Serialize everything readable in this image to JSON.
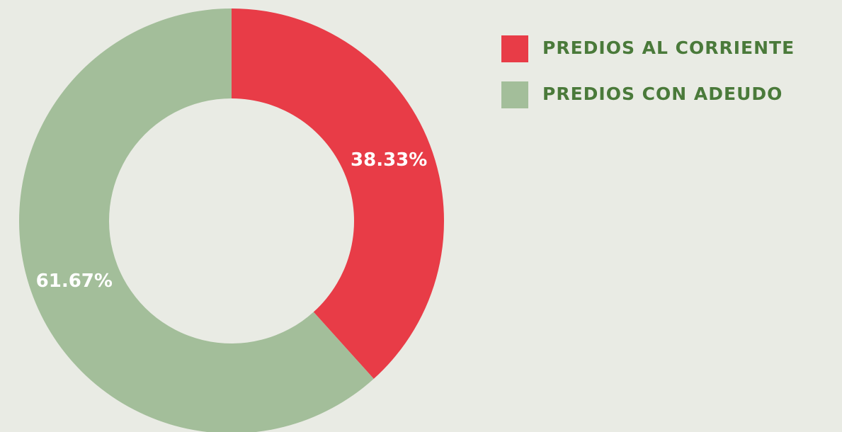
{
  "chart_data": {
    "type": "donut",
    "categories": [
      "PREDIOS AL CORRIENTE",
      "PREDIOS CON ADEUDO"
    ],
    "values": [
      38.33,
      61.67
    ],
    "value_labels": [
      "38.33%",
      "61.67%"
    ],
    "colors": [
      "#e83c47",
      "#a3be9a"
    ]
  }
}
